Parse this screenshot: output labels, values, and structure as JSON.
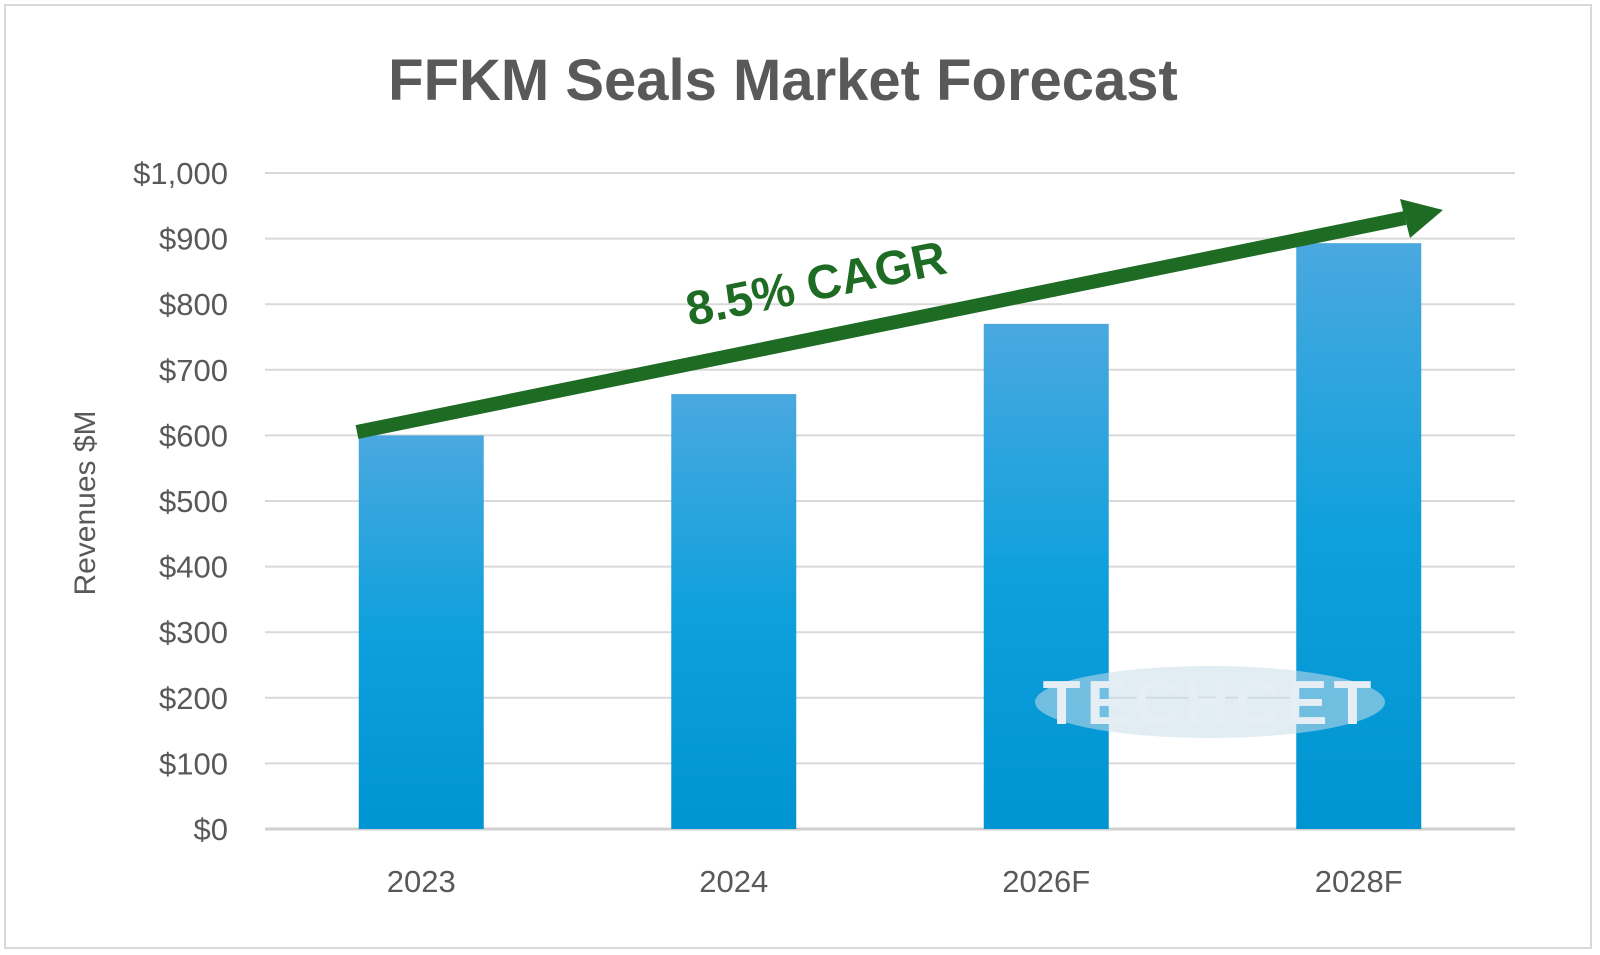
{
  "chart_data": {
    "type": "bar",
    "title": "FFKM Seals Market Forecast",
    "xlabel": "",
    "ylabel": "Revenues $M",
    "categories": [
      "2023",
      "2024",
      "2026F",
      "2028F"
    ],
    "values": [
      600,
      663,
      770,
      893
    ],
    "ylim": [
      0,
      1000
    ],
    "yticks": [
      0,
      100,
      200,
      300,
      400,
      500,
      600,
      700,
      800,
      900,
      1000
    ],
    "ytick_labels": [
      "$0",
      "$100",
      "$200",
      "$300",
      "$400",
      "$500",
      "$600",
      "$700",
      "$800",
      "$900",
      "$1,000"
    ],
    "grid": true,
    "annotation": "8.5% CAGR",
    "watermark": "TECHCET",
    "colors": {
      "bar_top": "#4aa8df",
      "bar_bottom": "#0096d6",
      "arrow": "#1e6b24",
      "grid": "#d9d9d9",
      "text": "#595959"
    }
  }
}
